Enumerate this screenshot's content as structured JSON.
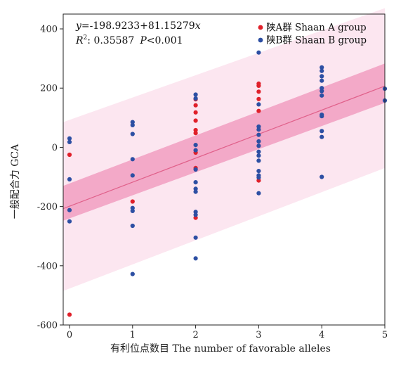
{
  "chart_data": {
    "type": "scatter",
    "xlabel": "有利位点数目 The number of favorable alleles",
    "ylabel": "一般配合力 GCA",
    "xlim": [
      -0.1,
      5.0
    ],
    "ylim": [
      -600,
      450
    ],
    "x_ticks": [
      0,
      1,
      2,
      3,
      4,
      5
    ],
    "y_ticks": [
      -600,
      -400,
      -200,
      0,
      200,
      400
    ],
    "grid": false,
    "legend_position": "top-right",
    "annotation": {
      "equation_y": "y",
      "equation_rest": "=-198.9233+81.15279",
      "equation_x": "x",
      "r2_label": "R",
      "r2_sup": "2",
      "r2_value": ": 0.35587",
      "p_label": "P",
      "p_value": "<0.001"
    },
    "regression": {
      "intercept": -198.9233,
      "slope": 81.15279
    },
    "confidence_band": {
      "x": [
        -0.1,
        5.0
      ],
      "lower": [
        -248,
        150
      ],
      "upper": [
        -130,
        283
      ]
    },
    "prediction_band": {
      "x": [
        -0.1,
        5.0
      ],
      "lower": [
        -485,
        -70
      ],
      "upper": [
        85,
        470
      ]
    },
    "colors": {
      "group_a": "#e0202a",
      "group_b": "#2d4fa3",
      "regression_line": "#e0608a",
      "confidence_band": "#f3a9c8",
      "prediction_band": "#fce6f0",
      "axis": "#222222"
    },
    "series": [
      {
        "name": "陕A群 Shaan A group",
        "color": "#e0202a",
        "points": [
          [
            0,
            -25
          ],
          [
            0,
            -565
          ],
          [
            1,
            -183
          ],
          [
            2,
            162
          ],
          [
            2,
            142
          ],
          [
            2,
            118
          ],
          [
            2,
            90
          ],
          [
            2,
            58
          ],
          [
            2,
            48
          ],
          [
            2,
            -18
          ],
          [
            2,
            -70
          ],
          [
            2,
            -238
          ],
          [
            3,
            215
          ],
          [
            3,
            208
          ],
          [
            3,
            188
          ],
          [
            3,
            163
          ],
          [
            3,
            123
          ],
          [
            3,
            -112
          ]
        ]
      },
      {
        "name": "陕B群 Shaan B group",
        "color": "#2d4fa3",
        "points": [
          [
            0,
            30
          ],
          [
            0,
            18
          ],
          [
            0,
            -108
          ],
          [
            0,
            -212
          ],
          [
            0,
            -250
          ],
          [
            1,
            85
          ],
          [
            1,
            75
          ],
          [
            1,
            45
          ],
          [
            1,
            -40
          ],
          [
            1,
            -95
          ],
          [
            1,
            -205
          ],
          [
            1,
            -215
          ],
          [
            1,
            -265
          ],
          [
            1,
            -428
          ],
          [
            2,
            178
          ],
          [
            2,
            165
          ],
          [
            2,
            8
          ],
          [
            2,
            -10
          ],
          [
            2,
            -75
          ],
          [
            2,
            -118
          ],
          [
            2,
            -140
          ],
          [
            2,
            -150
          ],
          [
            2,
            -218
          ],
          [
            2,
            -228
          ],
          [
            2,
            -305
          ],
          [
            2,
            -375
          ],
          [
            3,
            320
          ],
          [
            3,
            145
          ],
          [
            3,
            70
          ],
          [
            3,
            60
          ],
          [
            3,
            42
          ],
          [
            3,
            20
          ],
          [
            3,
            5
          ],
          [
            3,
            -15
          ],
          [
            3,
            -28
          ],
          [
            3,
            -45
          ],
          [
            3,
            -80
          ],
          [
            3,
            -95
          ],
          [
            3,
            -102
          ],
          [
            3,
            -155
          ],
          [
            4,
            270
          ],
          [
            4,
            258
          ],
          [
            4,
            240
          ],
          [
            4,
            225
          ],
          [
            4,
            200
          ],
          [
            4,
            190
          ],
          [
            4,
            175
          ],
          [
            4,
            110
          ],
          [
            4,
            105
          ],
          [
            4,
            55
          ],
          [
            4,
            35
          ],
          [
            4,
            -100
          ],
          [
            5,
            198
          ],
          [
            5,
            158
          ]
        ]
      }
    ]
  }
}
